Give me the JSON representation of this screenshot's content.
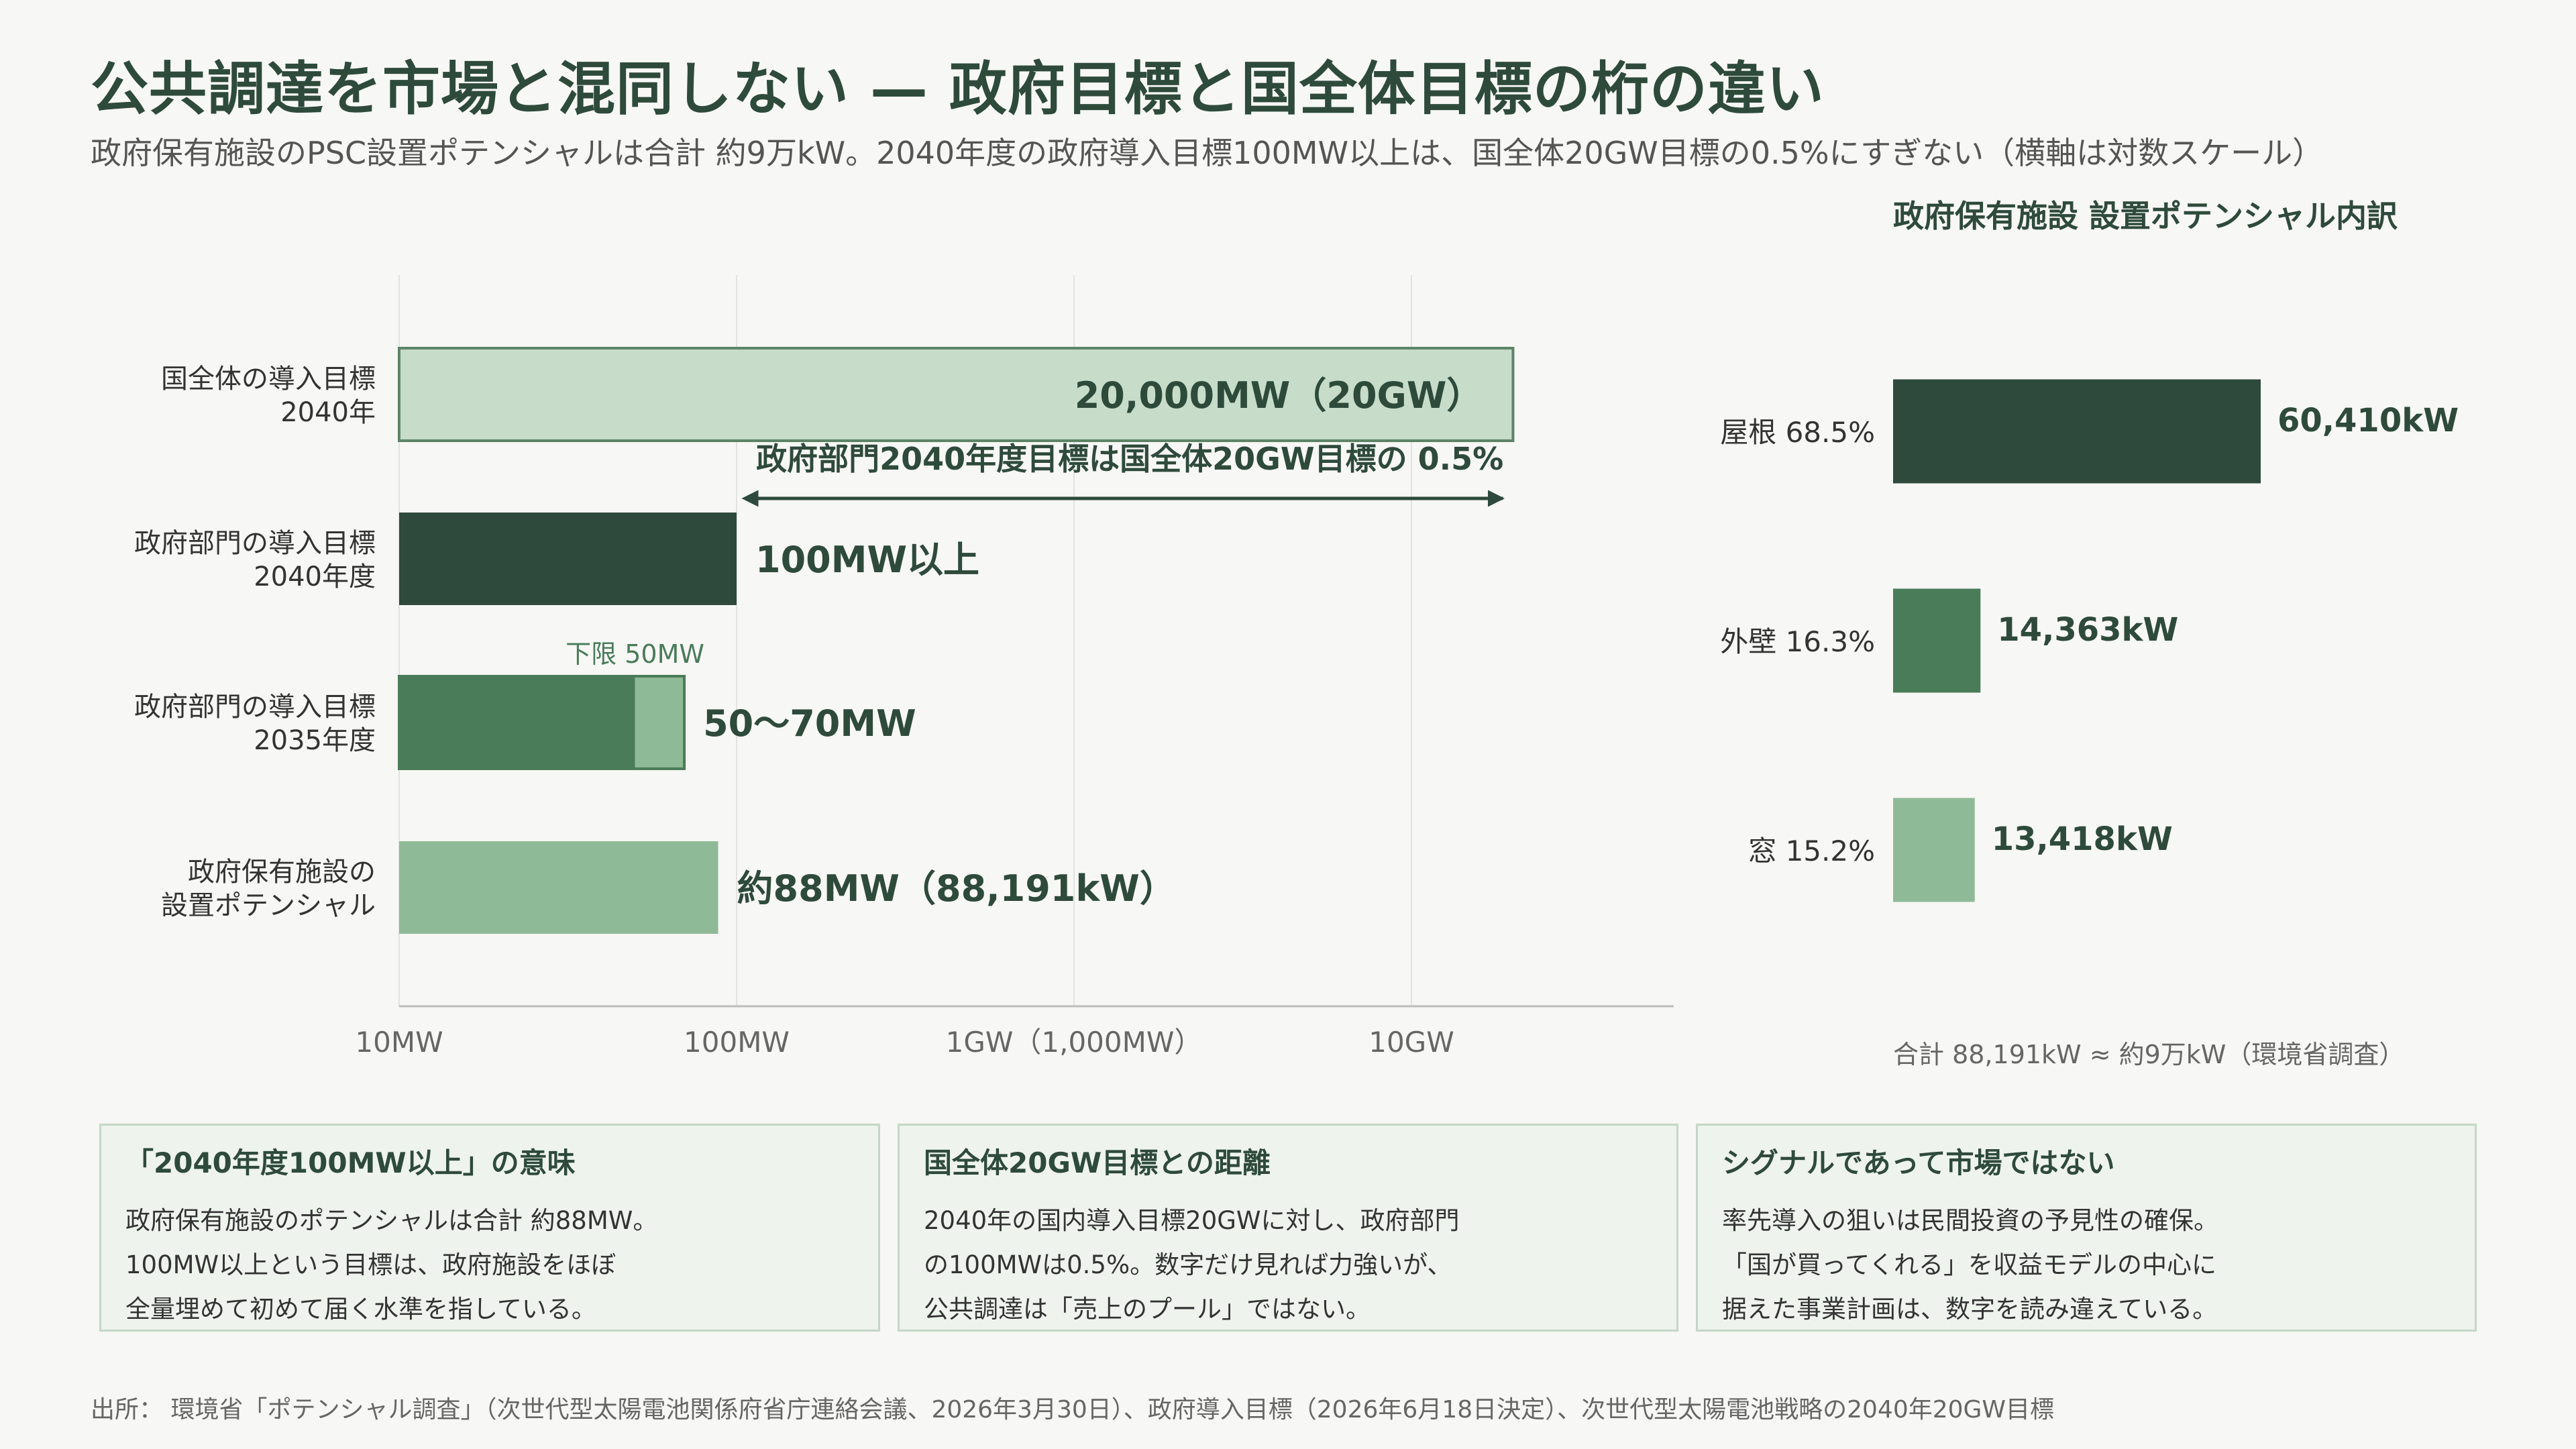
{
  "title": "公共調達を市場と混同しない — 政府目標と国全体目標の桁の違い",
  "subtitle": "政府保有施設のPSC設置ポテンシャルは合計 約9万kW。2040年度の政府導入目標100MW以上は、国全体20GW目標の0.5%にすぎない（横軸は対数スケール）",
  "colors": {
    "dark": "#2d4a3c",
    "mid": "#4a7c59",
    "light": "#8fba97",
    "pale": "#c8dcca",
    "pale_border": "#5d8466"
  },
  "chart_data": [
    {
      "type": "bar",
      "orientation": "horizontal",
      "x_scale": "log",
      "x_unit": "MW",
      "xlim": [
        10,
        50000
      ],
      "x_ticks": [
        {
          "value": 10,
          "label": "10MW"
        },
        {
          "value": 100,
          "label": "100MW"
        },
        {
          "value": 1000,
          "label": "1GW（1,000MW）"
        },
        {
          "value": 10000,
          "label": "10GW"
        }
      ],
      "grid": true,
      "categories": [
        [
          "国全体の導入目標",
          "2040年"
        ],
        [
          "政府部門の導入目標",
          "2040年度"
        ],
        [
          "政府部門の導入目標",
          "2035年度"
        ],
        [
          "政府保有施設の",
          "設置ポテンシャル"
        ]
      ],
      "bars": [
        {
          "value": 20000,
          "label": "20,000MW（20GW）",
          "color": "pale"
        },
        {
          "value": 100,
          "label": "100MW以上",
          "color": "dark"
        },
        {
          "value": 70,
          "lower": 50,
          "label": "50〜70MW",
          "color": "mid",
          "range_color": "light",
          "lower_label": "下限 50MW"
        },
        {
          "value": 88.191,
          "label": "約88MW（88,191kW）",
          "color": "light"
        }
      ],
      "annotation": {
        "text": "政府部門2040年度目標は国全体20GW目標の 0.5%",
        "from": 100,
        "to": 20000
      }
    },
    {
      "type": "bar",
      "orientation": "horizontal",
      "title": "政府保有施設 設置ポテンシャル内訳",
      "categories": [
        "屋根 68.5%",
        "外壁 16.3%",
        "窓 15.2%"
      ],
      "values": [
        60410,
        14363,
        13418
      ],
      "value_labels": [
        "60,410kW",
        "14,363kW",
        "13,418kW"
      ],
      "colors": [
        "dark",
        "mid",
        "light"
      ],
      "footnote": "合計 88,191kW ≈ 約9万kW（環境省調査）"
    }
  ],
  "notes": [
    {
      "title": "「2040年度100MW以上」の意味",
      "lines": [
        "政府保有施設のポテンシャルは合計 約88MW。",
        "100MW以上という目標は、政府施設をほぼ",
        "全量埋めて初めて届く水準を指している。"
      ]
    },
    {
      "title": "国全体20GW目標との距離",
      "lines": [
        "2040年の国内導入目標20GWに対し、政府部門",
        "の100MWは0.5%。数字だけ見れば力強いが、",
        "公共調達は「売上のプール」ではない。"
      ]
    },
    {
      "title": "シグナルであって市場ではない",
      "lines": [
        "率先導入の狙いは民間投資の予見性の確保。",
        "「国が買ってくれる」を収益モデルの中心に",
        "据えた事業計画は、数字を読み違えている。"
      ]
    }
  ],
  "source": "出所： 環境省「ポテンシャル調査」（次世代型太陽電池関係府省庁連絡会議、2026年3月30日）、政府導入目標（2026年6月18日決定）、次世代型太陽電池戦略の2040年20GW目標"
}
